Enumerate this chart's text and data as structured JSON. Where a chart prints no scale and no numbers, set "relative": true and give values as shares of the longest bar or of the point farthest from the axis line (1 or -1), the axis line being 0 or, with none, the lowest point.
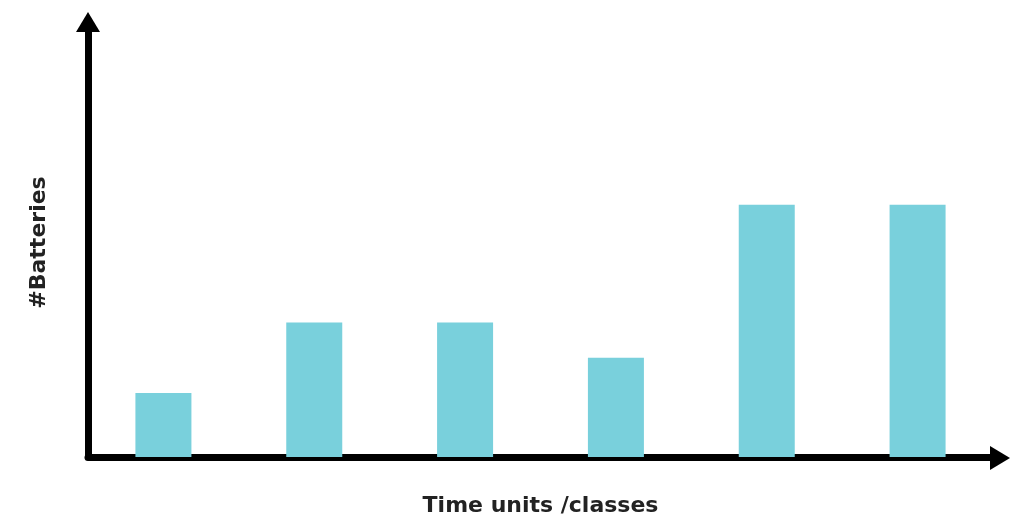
{
  "chart_data": {
    "type": "bar",
    "xlabel": "Time units /classes",
    "ylabel": "#Batteries",
    "relative": true,
    "categories": [
      null,
      null,
      null,
      null,
      null,
      null
    ],
    "values": [
      0.254,
      0.533,
      0.533,
      0.393,
      1,
      1
    ],
    "color": "#79d0dc",
    "grid": false
  }
}
